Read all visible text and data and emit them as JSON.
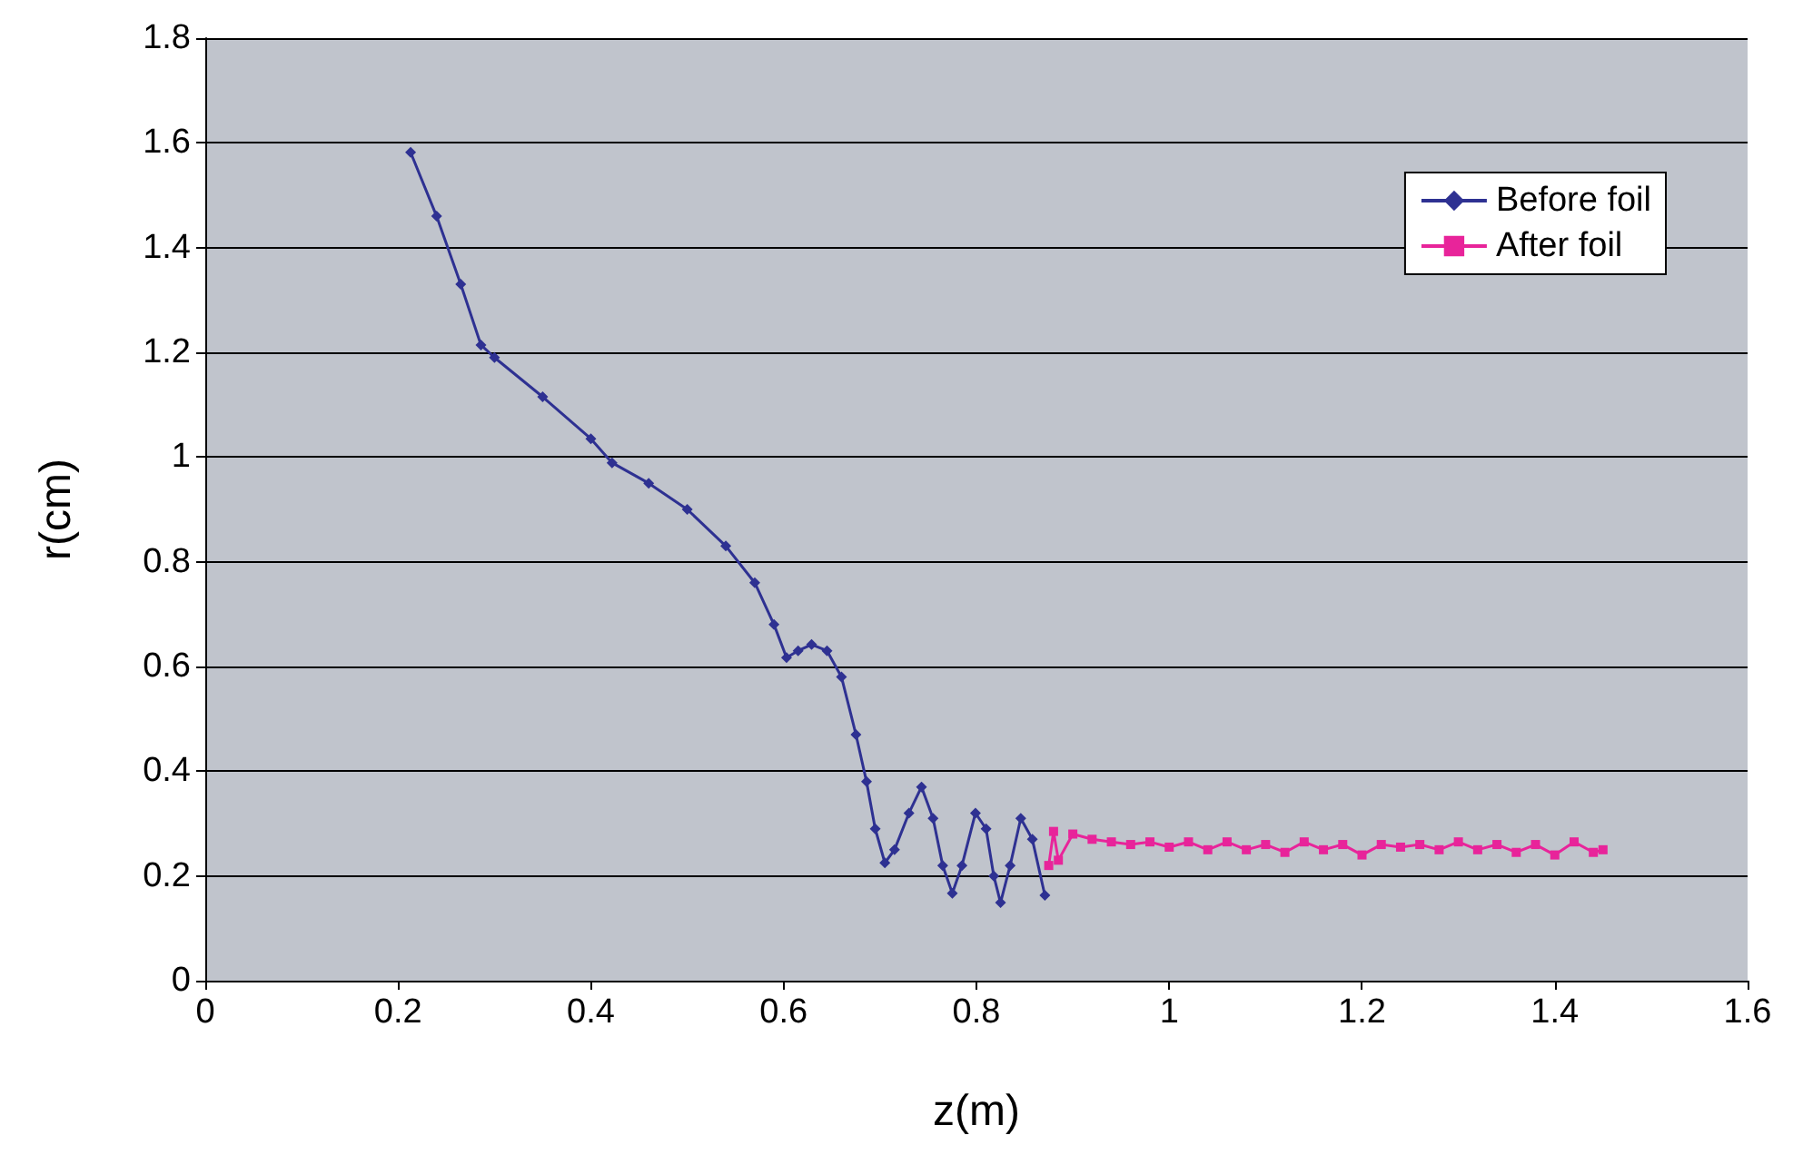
{
  "chart_data": {
    "type": "line",
    "xlabel": "z(m)",
    "ylabel": "r(cm)",
    "xlim": [
      0,
      1.6
    ],
    "xticks": [
      0,
      0.2,
      0.4,
      0.6,
      0.8,
      1,
      1.2,
      1.4,
      1.6
    ],
    "ylim": [
      0,
      1.8
    ],
    "yticks": [
      0,
      0.2,
      0.4,
      0.6,
      0.8,
      1,
      1.2,
      1.4,
      1.6,
      1.8
    ],
    "grid": "y",
    "legend": "top right",
    "series": [
      {
        "name": "Before foil",
        "color": "#2e3192",
        "marker": "diamond",
        "x": [
          0.213,
          0.24,
          0.265,
          0.286,
          0.3,
          0.35,
          0.4,
          0.422,
          0.46,
          0.5,
          0.54,
          0.57,
          0.59,
          0.603,
          0.615,
          0.629,
          0.645,
          0.66,
          0.675,
          0.686,
          0.695,
          0.705,
          0.715,
          0.73,
          0.743,
          0.755,
          0.765,
          0.775,
          0.785,
          0.799,
          0.81,
          0.818,
          0.825,
          0.835,
          0.846,
          0.858,
          0.871
        ],
        "values": [
          1.582,
          1.46,
          1.33,
          1.214,
          1.19,
          1.115,
          1.035,
          0.989,
          0.95,
          0.9,
          0.83,
          0.76,
          0.68,
          0.617,
          0.63,
          0.642,
          0.63,
          0.58,
          0.47,
          0.38,
          0.29,
          0.225,
          0.25,
          0.32,
          0.37,
          0.31,
          0.22,
          0.167,
          0.22,
          0.32,
          0.29,
          0.2,
          0.149,
          0.22,
          0.31,
          0.27,
          0.163
        ]
      },
      {
        "name": "After foil",
        "color": "#e8249a",
        "marker": "square",
        "x": [
          0.875,
          0.88,
          0.885,
          0.9,
          0.92,
          0.94,
          0.96,
          0.98,
          1.0,
          1.02,
          1.04,
          1.06,
          1.08,
          1.1,
          1.12,
          1.14,
          1.16,
          1.18,
          1.2,
          1.22,
          1.24,
          1.26,
          1.28,
          1.3,
          1.32,
          1.34,
          1.36,
          1.38,
          1.4,
          1.42,
          1.44,
          1.45
        ],
        "values": [
          0.22,
          0.285,
          0.23,
          0.28,
          0.27,
          0.265,
          0.26,
          0.265,
          0.255,
          0.265,
          0.25,
          0.265,
          0.25,
          0.26,
          0.245,
          0.265,
          0.25,
          0.26,
          0.24,
          0.26,
          0.255,
          0.26,
          0.25,
          0.265,
          0.25,
          0.26,
          0.245,
          0.26,
          0.24,
          0.265,
          0.245,
          0.25
        ]
      }
    ]
  }
}
